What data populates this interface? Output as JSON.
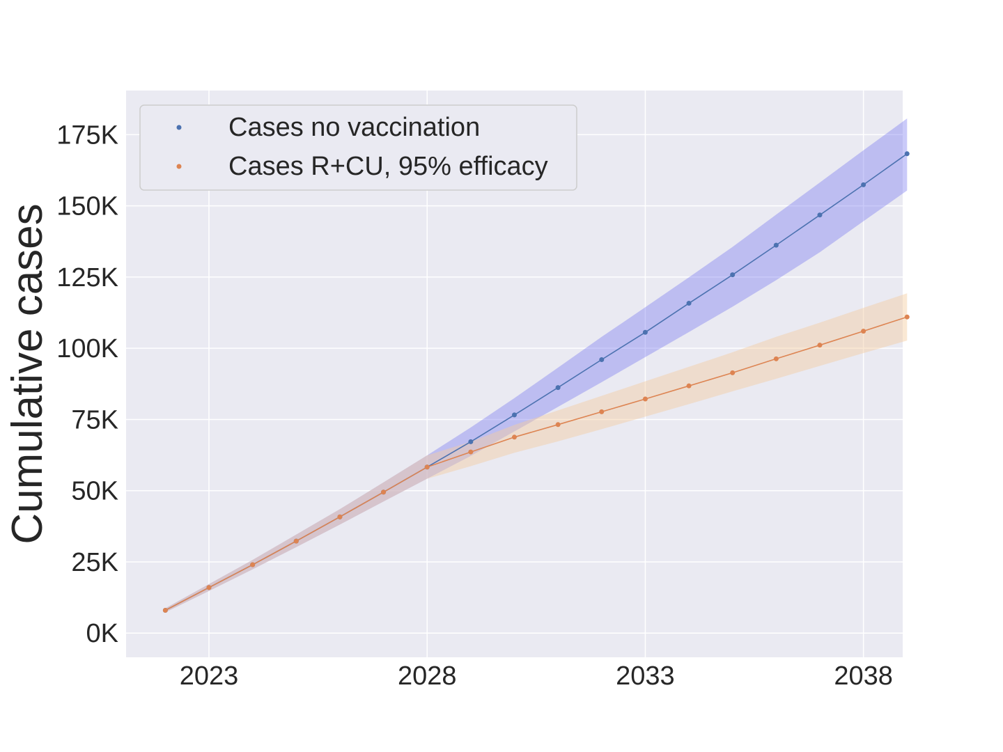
{
  "chart_data": {
    "type": "line",
    "title": "",
    "xlabel": "",
    "ylabel": "Cumulative cases",
    "xlim": [
      2021.1,
      2038.9
    ],
    "ylim": [
      -8500,
      190500
    ],
    "x_ticks": [
      2023,
      2028,
      2033,
      2038
    ],
    "y_ticks": [
      0,
      25000,
      50000,
      75000,
      100000,
      125000,
      150000,
      175000
    ],
    "y_tick_labels": [
      "0K",
      "25K",
      "50K",
      "75K",
      "100K",
      "125K",
      "150K",
      "175K"
    ],
    "grid": true,
    "legend_position": "top-left",
    "x": [
      2022,
      2023,
      2024,
      2025,
      2026,
      2027,
      2028,
      2029,
      2030,
      2031,
      2032,
      2033,
      2034,
      2035,
      2036,
      2037,
      2038,
      2039
    ],
    "series": [
      {
        "name": "Cases no vaccination",
        "color": "#4c72b0",
        "band_color": "#7b7bf0",
        "values": [
          8000,
          16000,
          24000,
          32300,
          40800,
          49500,
          58300,
          67200,
          76600,
          86200,
          96000,
          105600,
          115800,
          125800,
          136200,
          146800,
          157400,
          168300
        ],
        "lower": [
          7300,
          14800,
          22400,
          30200,
          38100,
          46200,
          54200,
          62200,
          70800,
          79400,
          88100,
          96900,
          105700,
          114600,
          123900,
          133700,
          144600,
          155400
        ],
        "upper": [
          8700,
          17200,
          25700,
          34600,
          43500,
          52900,
          62400,
          72200,
          82500,
          93200,
          104000,
          114400,
          124900,
          135600,
          146900,
          158200,
          169500,
          180700
        ]
      },
      {
        "name": "Cases R+CU, 95% efficacy",
        "color": "#dd8452",
        "band_color": "#f5cba0",
        "values": [
          8000,
          16000,
          24000,
          32300,
          40800,
          49500,
          58300,
          63600,
          68800,
          73200,
          77700,
          82200,
          86800,
          91400,
          96300,
          101100,
          106000,
          111000
        ],
        "lower": [
          7300,
          14800,
          22400,
          30200,
          38100,
          46200,
          54200,
          58600,
          63300,
          67300,
          71600,
          76000,
          80400,
          84900,
          89300,
          93800,
          98300,
          102700
        ],
        "upper": [
          8700,
          17200,
          25700,
          34600,
          43500,
          52900,
          62400,
          67200,
          73100,
          78200,
          83300,
          88400,
          93500,
          98600,
          104000,
          109000,
          114200,
          119300
        ]
      }
    ]
  }
}
